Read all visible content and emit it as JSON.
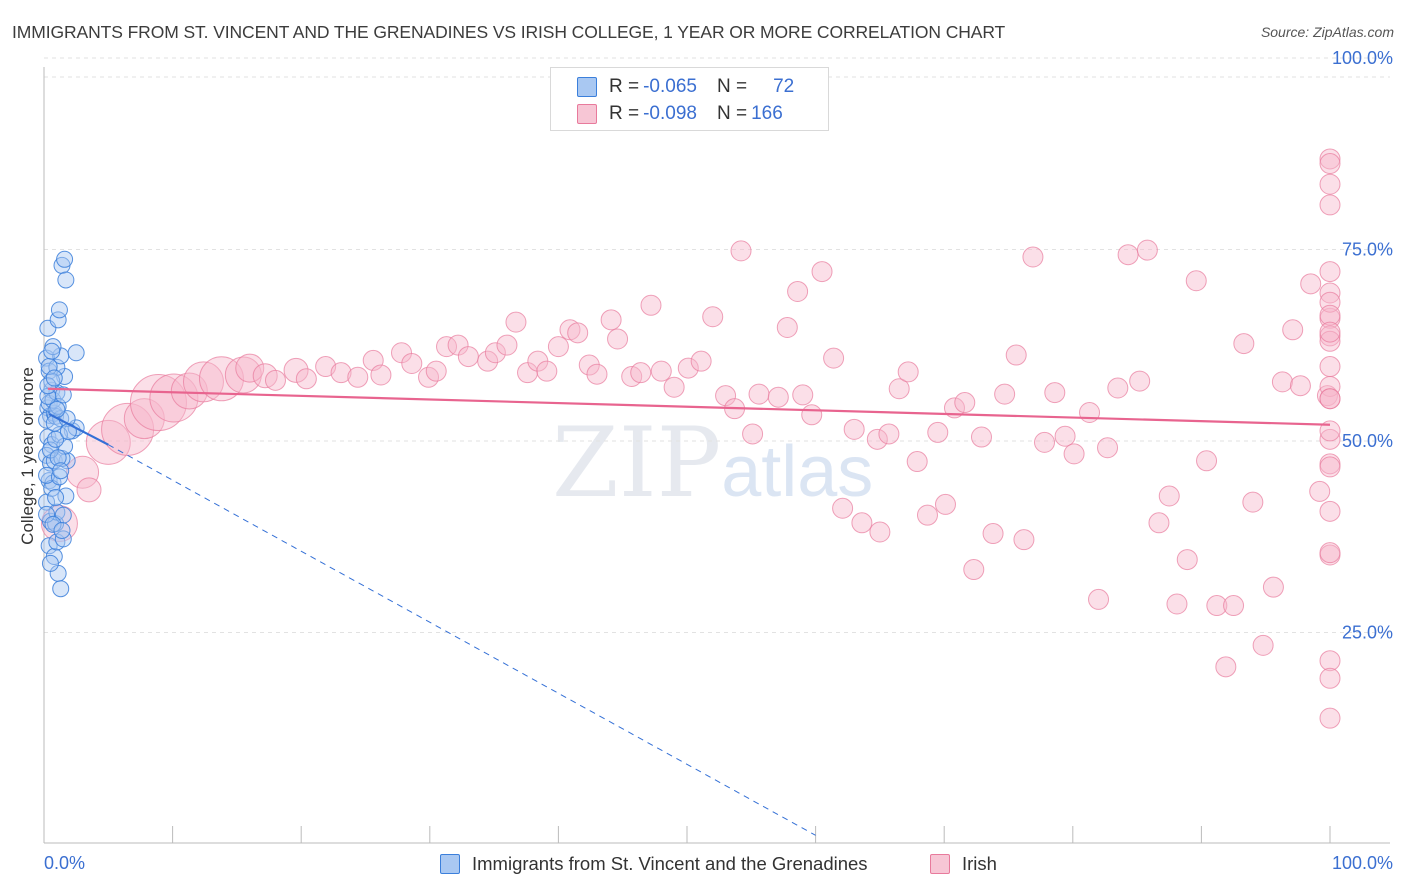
{
  "title": "IMMIGRANTS FROM ST. VINCENT AND THE GRENADINES VS IRISH COLLEGE, 1 YEAR OR MORE CORRELATION CHART",
  "source": "Source: ZipAtlas.com",
  "watermark": {
    "zip": "ZIP",
    "atlas": "atlas"
  },
  "legend": {
    "rows": [
      {
        "r_label": "R = ",
        "r_value": "-0.065",
        "n_label": "N = ",
        "n_value": "72"
      },
      {
        "r_label": "R = ",
        "r_value": "-0.098",
        "n_label": "N = ",
        "n_value": "166"
      }
    ]
  },
  "colors": {
    "blue_fill": "#a9c8f2",
    "blue_stroke": "#3b7fdb",
    "blue_line": "#3470d6",
    "pink_fill": "#f7b8cb",
    "pink_stroke": "#e87a9c",
    "pink_line": "#e8648f",
    "grid": "#e2e2e2",
    "tick_text": "#3b6fd1"
  },
  "chart_data": {
    "type": "scatter",
    "title": "IMMIGRANTS FROM ST. VINCENT AND THE GRENADINES VS IRISH COLLEGE, 1 YEAR OR MORE CORRELATION CHART",
    "xlabel": "",
    "ylabel": "College, 1 year or more",
    "xlim": [
      0,
      100
    ],
    "ylim": [
      0,
      100
    ],
    "x_tick_labels": [
      "0.0%",
      "100.0%"
    ],
    "y_tick_labels": [
      "25.0%",
      "50.0%",
      "75.0%",
      "100.0%"
    ],
    "y_ticks": [
      25,
      50,
      75,
      100
    ],
    "grid": true,
    "legend_position": "bottom",
    "series": [
      {
        "name": "Immigrants from St. Vincent and the Grenadines",
        "color": "#3b7fdb",
        "stats": {
          "R": -0.065,
          "N": 72
        },
        "trend": [
          [
            0.4,
            56.0
          ],
          [
            5.0,
            52.0
          ]
        ],
        "trend_extension": [
          [
            5.0,
            52.0
          ],
          [
            60.0,
            1.0
          ]
        ],
        "points": [
          [
            0.2,
            63.3
          ],
          [
            0.4,
            61.6
          ],
          [
            0.6,
            59.1
          ],
          [
            0.3,
            56.8
          ],
          [
            0.5,
            55.8
          ],
          [
            0.2,
            55.2
          ],
          [
            0.8,
            56.1
          ],
          [
            0.9,
            55.7
          ],
          [
            0.4,
            57.4
          ],
          [
            0.7,
            57.8
          ],
          [
            1.0,
            58.8
          ],
          [
            0.3,
            53.0
          ],
          [
            0.6,
            52.0
          ],
          [
            0.2,
            50.6
          ],
          [
            0.5,
            49.6
          ],
          [
            0.8,
            49.9
          ],
          [
            0.4,
            47.3
          ],
          [
            0.7,
            47.0
          ],
          [
            0.2,
            44.5
          ],
          [
            0.5,
            42.0
          ],
          [
            0.9,
            41.7
          ],
          [
            0.4,
            38.8
          ],
          [
            0.8,
            37.4
          ],
          [
            1.1,
            35.2
          ],
          [
            1.3,
            33.2
          ],
          [
            1.0,
            43.2
          ],
          [
            1.5,
            42.8
          ],
          [
            1.7,
            45.3
          ],
          [
            1.8,
            49.9
          ],
          [
            2.2,
            53.8
          ],
          [
            2.5,
            54.2
          ],
          [
            1.2,
            53.3
          ],
          [
            1.4,
            50.2
          ],
          [
            1.6,
            51.8
          ],
          [
            1.3,
            55.4
          ],
          [
            1.1,
            57.0
          ],
          [
            1.5,
            58.5
          ],
          [
            1.6,
            60.9
          ],
          [
            1.0,
            62.1
          ],
          [
            1.3,
            63.6
          ],
          [
            0.7,
            64.8
          ],
          [
            0.3,
            67.2
          ],
          [
            1.1,
            68.3
          ],
          [
            1.2,
            69.6
          ],
          [
            1.4,
            75.4
          ],
          [
            1.6,
            76.2
          ],
          [
            1.7,
            73.5
          ],
          [
            2.5,
            64.0
          ],
          [
            0.6,
            46.3
          ],
          [
            0.9,
            45.1
          ],
          [
            0.2,
            48.0
          ],
          [
            0.5,
            51.3
          ],
          [
            0.3,
            58.3
          ],
          [
            0.8,
            54.8
          ],
          [
            1.0,
            39.3
          ],
          [
            1.5,
            39.7
          ],
          [
            0.6,
            60.3
          ],
          [
            0.4,
            62.2
          ],
          [
            1.2,
            47.8
          ],
          [
            0.9,
            52.7
          ],
          [
            1.8,
            55.4
          ],
          [
            0.2,
            42.9
          ],
          [
            0.7,
            41.6
          ],
          [
            1.4,
            40.8
          ],
          [
            0.5,
            36.5
          ],
          [
            1.1,
            50.3
          ],
          [
            1.9,
            53.7
          ],
          [
            0.3,
            59.7
          ],
          [
            0.6,
            64.2
          ],
          [
            1.0,
            56.6
          ],
          [
            0.8,
            60.7
          ],
          [
            1.3,
            48.6
          ]
        ]
      },
      {
        "name": "Irish",
        "color": "#e87a9c",
        "stats": {
          "R": -0.098,
          "N": 166
        },
        "trend": [
          [
            0.3,
            59.3
          ],
          [
            100,
            54.6
          ]
        ],
        "points": [
          [
            1.2,
            41.7,
            18
          ],
          [
            3.0,
            48.4,
            16
          ],
          [
            3.5,
            46.1,
            12
          ],
          [
            5.0,
            52.3,
            22
          ],
          [
            6.5,
            54.0,
            26
          ],
          [
            7.8,
            55.4,
            20
          ],
          [
            8.9,
            57.5,
            28
          ],
          [
            10.1,
            58.1,
            24
          ],
          [
            11.3,
            59.0,
            18
          ],
          [
            12.4,
            60.2,
            20
          ],
          [
            13.8,
            60.6,
            22
          ],
          [
            15.5,
            61.1,
            18
          ],
          [
            16.0,
            62.0,
            14
          ],
          [
            17.2,
            61.0,
            12
          ],
          [
            18.0,
            60.4,
            10
          ],
          [
            19.6,
            61.7,
            12
          ],
          [
            20.4,
            60.6,
            10
          ],
          [
            21.9,
            62.2,
            10
          ],
          [
            23.1,
            61.4,
            10
          ],
          [
            24.4,
            60.8,
            10
          ],
          [
            25.6,
            63.0,
            10
          ],
          [
            26.2,
            61.1,
            10
          ],
          [
            27.8,
            64.0,
            10
          ],
          [
            28.6,
            62.6,
            10
          ],
          [
            29.9,
            60.8,
            10
          ],
          [
            30.5,
            61.6,
            10
          ],
          [
            31.3,
            64.8,
            10
          ],
          [
            32.2,
            65.0,
            10
          ],
          [
            33.0,
            63.5,
            10
          ],
          [
            34.5,
            62.9,
            10
          ],
          [
            35.1,
            64.0,
            10
          ],
          [
            36.0,
            65.0,
            10
          ],
          [
            36.7,
            68.0,
            10
          ],
          [
            37.6,
            61.4,
            10
          ],
          [
            38.4,
            62.9,
            10
          ],
          [
            39.1,
            61.6,
            10
          ],
          [
            40.0,
            64.8,
            10
          ],
          [
            40.9,
            67.0,
            10
          ],
          [
            41.5,
            66.6,
            10
          ],
          [
            42.4,
            62.4,
            10
          ],
          [
            43.0,
            61.2,
            10
          ],
          [
            44.1,
            68.3,
            10
          ],
          [
            44.6,
            65.8,
            10
          ],
          [
            45.7,
            60.9,
            10
          ],
          [
            46.4,
            61.4,
            10
          ],
          [
            47.2,
            70.2,
            10
          ],
          [
            48.0,
            61.6,
            10
          ],
          [
            49.0,
            59.5,
            10
          ],
          [
            50.1,
            62.0,
            10
          ],
          [
            51.1,
            62.9,
            10
          ],
          [
            52.0,
            68.7,
            10
          ],
          [
            53.0,
            58.4,
            10
          ],
          [
            53.7,
            56.7,
            10
          ],
          [
            54.2,
            77.3,
            10
          ],
          [
            55.1,
            53.4,
            10
          ],
          [
            55.6,
            58.6,
            10
          ],
          [
            57.1,
            58.2,
            10
          ],
          [
            57.8,
            67.3,
            10
          ],
          [
            58.6,
            72.0,
            10
          ],
          [
            59.0,
            58.5,
            10
          ],
          [
            59.7,
            55.9,
            10
          ],
          [
            60.5,
            74.6,
            10
          ],
          [
            61.4,
            63.3,
            10
          ],
          [
            62.1,
            43.7,
            10
          ],
          [
            63.0,
            54.0,
            10
          ],
          [
            63.6,
            41.8,
            10
          ],
          [
            64.8,
            52.7,
            10
          ],
          [
            65.0,
            40.6,
            10
          ],
          [
            65.7,
            53.4,
            10
          ],
          [
            66.5,
            59.3,
            10
          ],
          [
            67.2,
            61.5,
            10
          ],
          [
            67.9,
            49.8,
            10
          ],
          [
            68.7,
            42.8,
            10
          ],
          [
            69.5,
            53.6,
            10
          ],
          [
            70.1,
            44.2,
            10
          ],
          [
            70.8,
            56.8,
            10
          ],
          [
            71.6,
            57.5,
            10
          ],
          [
            72.3,
            35.7,
            10
          ],
          [
            72.9,
            53.0,
            10
          ],
          [
            73.8,
            40.4,
            10
          ],
          [
            74.7,
            58.6,
            10
          ],
          [
            75.6,
            63.7,
            10
          ],
          [
            76.2,
            39.6,
            10
          ],
          [
            76.9,
            76.5,
            10
          ],
          [
            77.8,
            52.3,
            10
          ],
          [
            78.6,
            58.8,
            10
          ],
          [
            79.4,
            53.1,
            10
          ],
          [
            80.1,
            50.8,
            10
          ],
          [
            81.3,
            56.2,
            10
          ],
          [
            82.0,
            31.8,
            10
          ],
          [
            82.7,
            51.6,
            10
          ],
          [
            83.5,
            59.4,
            10
          ],
          [
            84.3,
            76.8,
            10
          ],
          [
            85.2,
            60.3,
            10
          ],
          [
            85.8,
            77.4,
            10
          ],
          [
            86.7,
            41.8,
            10
          ],
          [
            87.5,
            45.3,
            10
          ],
          [
            88.1,
            31.2,
            10
          ],
          [
            88.9,
            37.0,
            10
          ],
          [
            89.6,
            73.4,
            10
          ],
          [
            90.4,
            49.9,
            10
          ],
          [
            91.2,
            31.0,
            10
          ],
          [
            91.9,
            23.0,
            10
          ],
          [
            92.5,
            31.0,
            10
          ],
          [
            93.3,
            65.2,
            10
          ],
          [
            94.0,
            44.5,
            10
          ],
          [
            94.8,
            25.8,
            10
          ],
          [
            95.6,
            33.4,
            10
          ],
          [
            96.3,
            60.2,
            10
          ],
          [
            97.1,
            67.0,
            10
          ],
          [
            97.7,
            59.7,
            10
          ],
          [
            98.5,
            73.0,
            10
          ],
          [
            99.2,
            45.9,
            10
          ],
          [
            99.8,
            58.4,
            10
          ],
          [
            100.0,
            89.3,
            10
          ],
          [
            100.0,
            23.8,
            10
          ],
          [
            100.0,
            62.2,
            10
          ],
          [
            100.0,
            68.5,
            10
          ],
          [
            100.0,
            66.2,
            10
          ],
          [
            100.0,
            49.5,
            10
          ],
          [
            100.0,
            71.8,
            10
          ],
          [
            100.0,
            52.7,
            10
          ],
          [
            100.0,
            74.6,
            10
          ],
          [
            100.0,
            53.8,
            10
          ],
          [
            100.0,
            70.6,
            10
          ],
          [
            100.0,
            68.9,
            10
          ],
          [
            100.0,
            65.5,
            10
          ],
          [
            100.0,
            88.7,
            10
          ],
          [
            100.0,
            59.6,
            10
          ],
          [
            100.0,
            16.3,
            10
          ],
          [
            100.0,
            21.5,
            10
          ],
          [
            100.0,
            86.0,
            10
          ],
          [
            100.0,
            49.1,
            10
          ],
          [
            100.0,
            58.0,
            10
          ],
          [
            100.0,
            37.6,
            10
          ],
          [
            100.0,
            43.3,
            10
          ],
          [
            100.0,
            37.9,
            10
          ],
          [
            100.0,
            58.0,
            10
          ],
          [
            100.0,
            66.7,
            10
          ],
          [
            100.0,
            83.3,
            10
          ]
        ]
      }
    ]
  }
}
